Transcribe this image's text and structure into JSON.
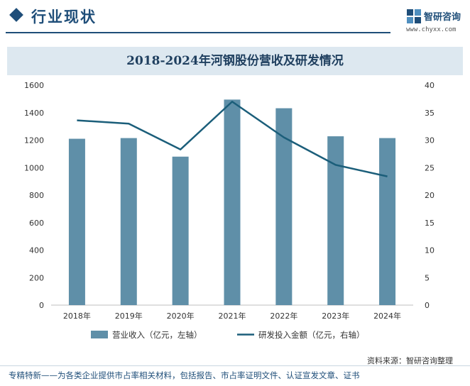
{
  "header": {
    "section_title": "行业现状",
    "logo_name": "智研咨询",
    "logo_url": "www.chyxx.com",
    "logo_icon": "chyxx-logo-icon"
  },
  "chart_data": {
    "type": "bar",
    "title": "2018-2024年河钢股份营收及研发情况",
    "categories": [
      "2018年",
      "2019年",
      "2020年",
      "2021年",
      "2022年",
      "2023年",
      "2024年"
    ],
    "series": [
      {
        "name": "营业收入（亿元，左轴）",
        "type": "bar",
        "axis": "left",
        "color": "#5f8fa8",
        "values": [
          1210,
          1215,
          1080,
          1495,
          1432,
          1228,
          1215
        ]
      },
      {
        "name": "研发投入金额（亿元，右轴）",
        "type": "line",
        "axis": "right",
        "color": "#1b5e7a",
        "values": [
          33.6,
          33.0,
          28.3,
          37.0,
          30.5,
          25.5,
          23.4
        ]
      }
    ],
    "y_left": {
      "min": 0,
      "max": 1600,
      "ticks": [
        0,
        200,
        400,
        600,
        800,
        1000,
        1200,
        1400,
        1600
      ]
    },
    "y_right": {
      "min": 0,
      "max": 40,
      "ticks": [
        0,
        5,
        10,
        15,
        20,
        25,
        30,
        35,
        40
      ]
    },
    "grid": false,
    "legend_position": "bottom"
  },
  "source": "资料来源：智研咨询整理",
  "footer": "专精特新——为各类企业提供市占率相关材料，包括报告、市占率证明文件、认证宣发文章、证书"
}
